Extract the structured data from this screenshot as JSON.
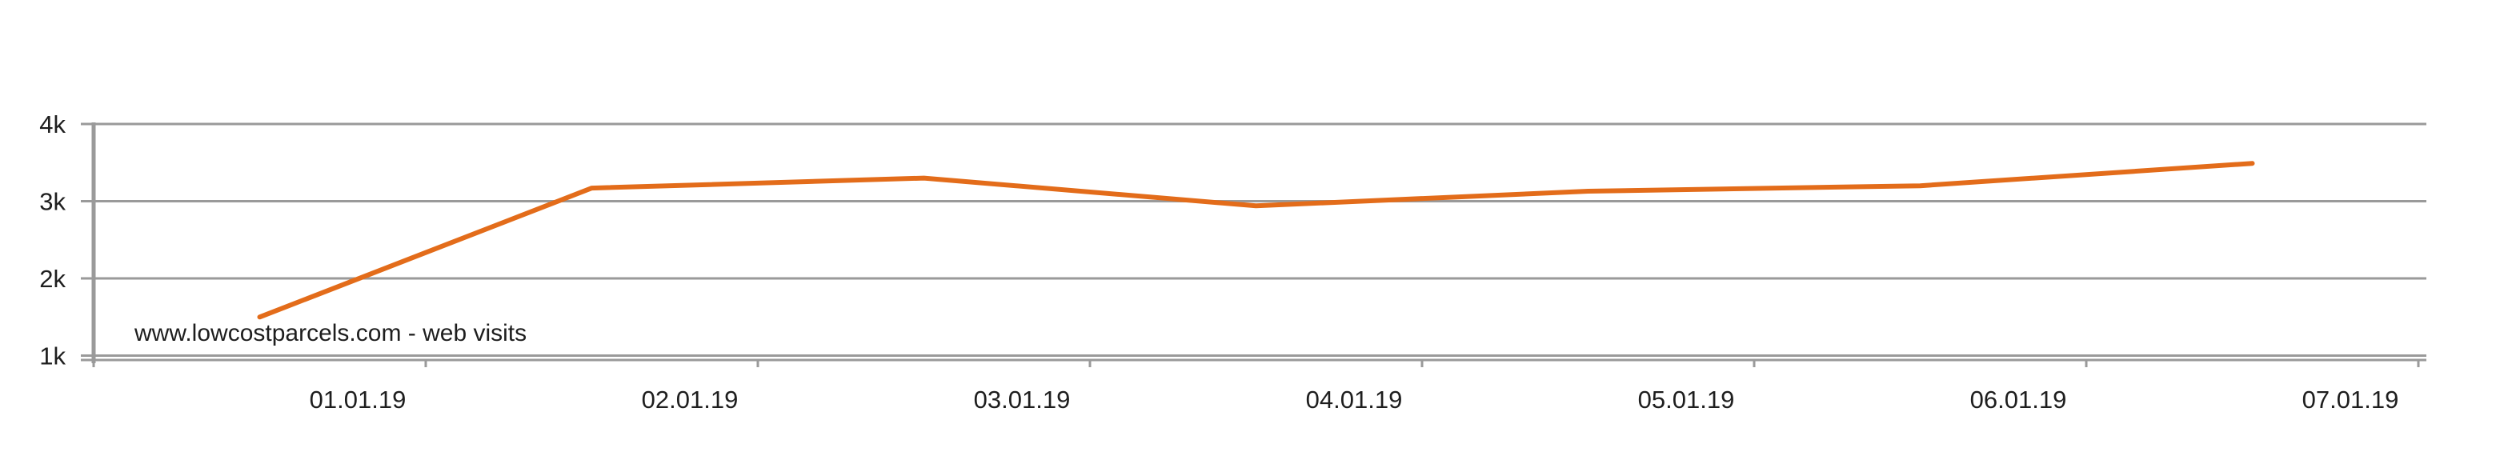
{
  "chart_data": {
    "type": "line",
    "x": [
      "31.12.18 12:00",
      "01.01.19 12:00",
      "02.01.19 12:00",
      "03.01.19 12:00",
      "04.01.19 12:00",
      "05.01.19 12:00",
      "06.01.19 12:00"
    ],
    "series": [
      {
        "name": "www.lowcostparcels.com - web visits",
        "values": [
          1500,
          3170,
          3300,
          2940,
          3130,
          3200,
          3490
        ],
        "color": "#e36c1a"
      }
    ],
    "xticks": [
      "01.01.19",
      "02.01.19",
      "03.01.19",
      "04.01.19",
      "05.01.19",
      "06.01.19",
      "07.01.19"
    ],
    "yticks": [
      "1k",
      "2k",
      "3k",
      "4k"
    ],
    "ytick_values": [
      1000,
      2000,
      3000,
      4000
    ],
    "ylim": [
      -1000,
      4000
    ],
    "grid": true,
    "legend_position": "bottom-left inside plot",
    "title": "",
    "xlabel": "",
    "ylabel": ""
  },
  "colors": {
    "line": "#e36c1a",
    "grid": "#9a9a9a",
    "text": "#1e1e1e"
  }
}
